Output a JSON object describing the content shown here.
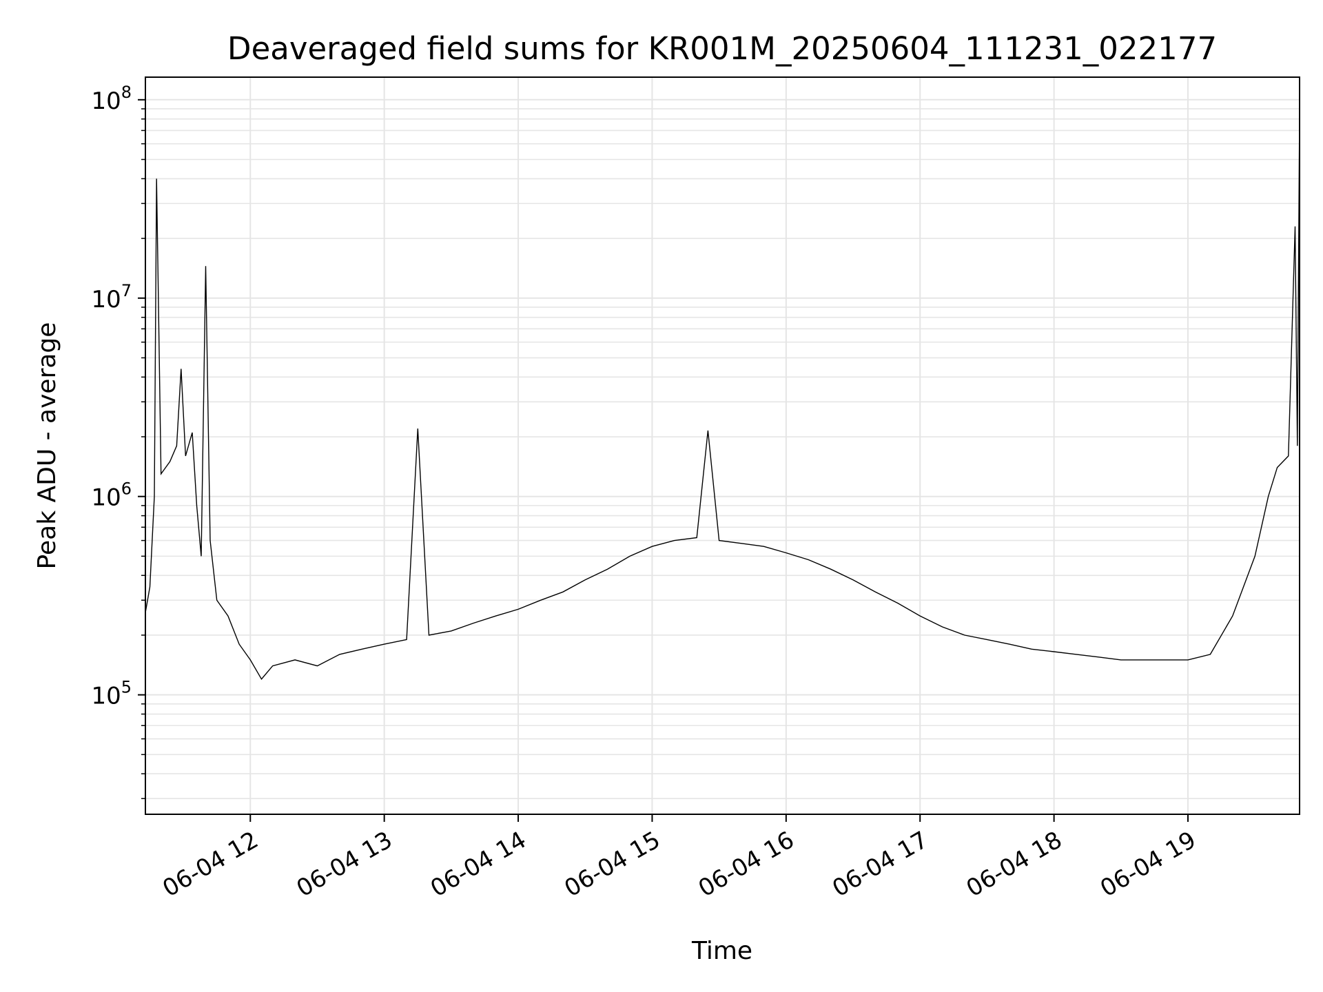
{
  "chart_data": {
    "type": "line",
    "title": "Deaveraged field sums for KR001M_20250604_111231_022177",
    "xlabel": "Time",
    "ylabel": "Peak ADU - average",
    "y_scale": "log",
    "ylim": [
      25000,
      130000000
    ],
    "xlim": [
      "2025-06-04 11:13",
      "2025-06-04 19:50"
    ],
    "grid": true,
    "legend": "none",
    "line_color": "#000000",
    "x_ticks": [
      "06-04 12",
      "06-04 13",
      "06-04 14",
      "06-04 15",
      "06-04 16",
      "06-04 17",
      "06-04 18",
      "06-04 19"
    ],
    "y_ticks": [
      {
        "base": "10",
        "exp": "5",
        "value": 100000
      },
      {
        "base": "10",
        "exp": "6",
        "value": 1000000
      },
      {
        "base": "10",
        "exp": "7",
        "value": 10000000
      },
      {
        "base": "10",
        "exp": "8",
        "value": 100000000
      }
    ],
    "series": [
      {
        "x_unit": "time of day on 2025-06-04",
        "points": [
          [
            "11:13",
            260000
          ],
          [
            "11:15",
            350000
          ],
          [
            "11:17",
            1000000
          ],
          [
            "11:18",
            40000000
          ],
          [
            "11:20",
            1300000
          ],
          [
            "11:24",
            1500000
          ],
          [
            "11:27",
            1800000
          ],
          [
            "11:29",
            4400000
          ],
          [
            "11:31",
            1600000
          ],
          [
            "11:34",
            2100000
          ],
          [
            "11:36",
            900000
          ],
          [
            "11:38",
            500000
          ],
          [
            "11:40",
            14500000
          ],
          [
            "11:42",
            600000
          ],
          [
            "11:45",
            300000
          ],
          [
            "11:50",
            250000
          ],
          [
            "11:55",
            180000
          ],
          [
            "12:00",
            150000
          ],
          [
            "12:05",
            120000
          ],
          [
            "12:10",
            140000
          ],
          [
            "12:20",
            150000
          ],
          [
            "12:30",
            140000
          ],
          [
            "12:40",
            160000
          ],
          [
            "12:50",
            170000
          ],
          [
            "13:00",
            180000
          ],
          [
            "13:10",
            190000
          ],
          [
            "13:15",
            2200000
          ],
          [
            "13:20",
            200000
          ],
          [
            "13:30",
            210000
          ],
          [
            "13:40",
            230000
          ],
          [
            "13:50",
            250000
          ],
          [
            "14:00",
            270000
          ],
          [
            "14:10",
            300000
          ],
          [
            "14:20",
            330000
          ],
          [
            "14:30",
            380000
          ],
          [
            "14:40",
            430000
          ],
          [
            "14:50",
            500000
          ],
          [
            "15:00",
            560000
          ],
          [
            "15:10",
            600000
          ],
          [
            "15:20",
            620000
          ],
          [
            "15:25",
            2150000
          ],
          [
            "15:30",
            600000
          ],
          [
            "15:40",
            580000
          ],
          [
            "15:50",
            560000
          ],
          [
            "16:00",
            520000
          ],
          [
            "16:10",
            480000
          ],
          [
            "16:20",
            430000
          ],
          [
            "16:30",
            380000
          ],
          [
            "16:40",
            330000
          ],
          [
            "16:50",
            290000
          ],
          [
            "17:00",
            250000
          ],
          [
            "17:10",
            220000
          ],
          [
            "17:20",
            200000
          ],
          [
            "17:30",
            190000
          ],
          [
            "17:40",
            180000
          ],
          [
            "17:50",
            170000
          ],
          [
            "18:00",
            165000
          ],
          [
            "18:10",
            160000
          ],
          [
            "18:20",
            155000
          ],
          [
            "18:30",
            150000
          ],
          [
            "18:40",
            150000
          ],
          [
            "18:50",
            150000
          ],
          [
            "19:00",
            150000
          ],
          [
            "19:10",
            160000
          ],
          [
            "19:20",
            250000
          ],
          [
            "19:30",
            500000
          ],
          [
            "19:36",
            1000000
          ],
          [
            "19:40",
            1400000
          ],
          [
            "19:45",
            1600000
          ],
          [
            "19:48",
            23000000
          ],
          [
            "19:49",
            1800000
          ],
          [
            "19:50",
            90000000
          ]
        ]
      }
    ]
  }
}
